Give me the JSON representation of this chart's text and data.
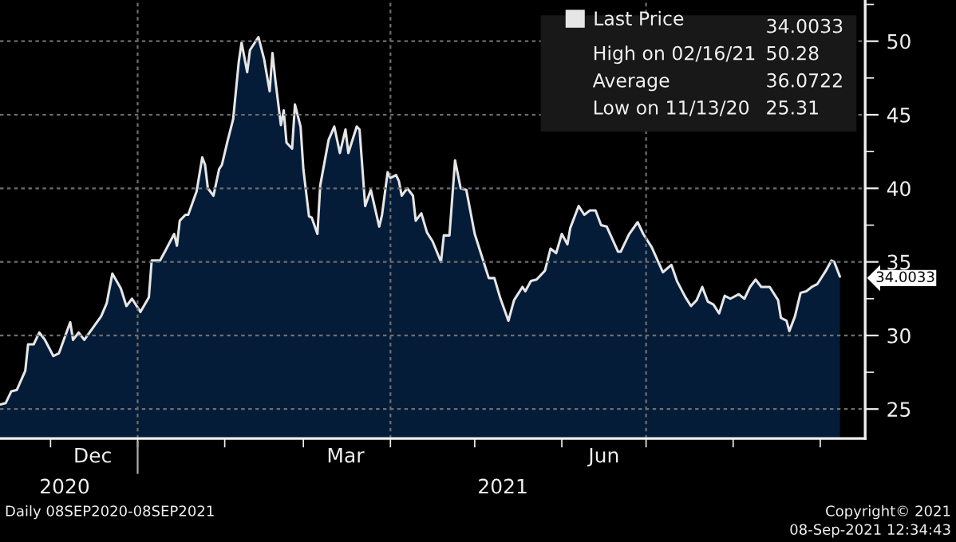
{
  "chart_data": {
    "type": "area",
    "x": [
      "2020-11-13",
      "2020-11-15",
      "2020-11-17",
      "2020-11-19",
      "2020-11-22",
      "2020-11-23",
      "2020-11-25",
      "2020-11-27",
      "2020-11-29",
      "2020-12-02",
      "2020-12-04",
      "2020-12-08",
      "2020-12-09",
      "2020-12-11",
      "2020-12-13",
      "2020-12-16",
      "2020-12-19",
      "2020-12-21",
      "2020-12-23",
      "2020-12-26",
      "2020-12-28",
      "2020-12-30",
      "2021-01-02",
      "2021-01-05",
      "2021-01-06",
      "2021-01-09",
      "2021-01-11",
      "2021-01-14",
      "2021-01-15",
      "2021-01-16",
      "2021-01-18",
      "2021-01-19",
      "2021-01-22",
      "2021-01-24",
      "2021-01-25",
      "2021-01-26",
      "2021-01-28",
      "2021-01-30",
      "2021-01-31",
      "2021-02-02",
      "2021-02-04",
      "2021-02-06",
      "2021-02-07",
      "2021-02-09",
      "2021-02-10",
      "2021-02-13",
      "2021-02-15",
      "2021-02-17",
      "2021-02-18",
      "2021-02-19",
      "2021-02-21",
      "2021-02-22",
      "2021-02-23",
      "2021-02-25",
      "2021-02-26",
      "2021-02-28",
      "2021-03-01",
      "2021-03-03",
      "2021-03-04",
      "2021-03-06",
      "2021-03-07",
      "2021-03-10",
      "2021-03-12",
      "2021-03-14",
      "2021-03-16",
      "2021-03-17",
      "2021-03-20",
      "2021-03-21",
      "2021-03-23",
      "2021-03-25",
      "2021-03-28",
      "2021-03-29",
      "2021-03-31",
      "2021-04-01",
      "2021-04-03",
      "2021-04-04",
      "2021-04-05",
      "2021-04-07",
      "2021-04-09",
      "2021-04-10",
      "2021-04-12",
      "2021-04-14",
      "2021-04-16",
      "2021-04-19",
      "2021-04-20",
      "2021-04-22",
      "2021-04-24",
      "2021-04-26",
      "2021-04-28",
      "2021-05-01",
      "2021-05-04",
      "2021-05-06",
      "2021-05-08",
      "2021-05-10",
      "2021-05-13",
      "2021-05-15",
      "2021-05-18",
      "2021-05-19",
      "2021-05-21",
      "2021-05-23",
      "2021-05-26",
      "2021-05-28",
      "2021-05-30",
      "2021-06-01",
      "2021-06-03",
      "2021-06-04",
      "2021-06-07",
      "2021-06-09",
      "2021-06-11",
      "2021-06-13",
      "2021-06-15",
      "2021-06-17",
      "2021-06-21",
      "2021-06-22",
      "2021-06-24",
      "2021-06-25",
      "2021-06-28",
      "2021-06-30",
      "2021-07-03",
      "2021-07-07",
      "2021-07-10",
      "2021-07-12",
      "2021-07-15",
      "2021-07-17",
      "2021-07-19",
      "2021-07-21",
      "2021-07-23",
      "2021-07-25",
      "2021-07-27",
      "2021-07-29",
      "2021-07-31",
      "2021-08-03",
      "2021-08-05",
      "2021-08-07",
      "2021-08-09",
      "2021-08-11",
      "2021-08-14",
      "2021-08-17",
      "2021-08-18",
      "2021-08-20",
      "2021-08-21",
      "2021-08-23",
      "2021-08-25",
      "2021-08-27",
      "2021-08-29",
      "2021-08-31",
      "2021-09-03",
      "2021-09-05",
      "2021-09-06",
      "2021-09-08"
    ],
    "series": [
      {
        "name": "Last Price",
        "color": "#e6e6e6",
        "values": [
          25.31,
          25.4,
          26.2,
          26.3,
          27.6,
          29.4,
          29.4,
          30.2,
          29.7,
          28.6,
          28.8,
          30.9,
          29.7,
          30.2,
          29.7,
          30.5,
          31.3,
          32.2,
          34.2,
          33.2,
          32.0,
          32.5,
          31.6,
          32.6,
          35.1,
          35.1,
          35.8,
          36.9,
          36.1,
          37.8,
          38.2,
          38.2,
          39.8,
          42.1,
          41.6,
          40.0,
          39.5,
          41.3,
          41.6,
          43.2,
          44.7,
          48.6,
          49.9,
          47.9,
          49.4,
          50.28,
          48.8,
          46.6,
          49.2,
          47.4,
          44.3,
          45.3,
          43.1,
          42.7,
          45.7,
          44.2,
          41.3,
          38.1,
          38.0,
          36.9,
          40.2,
          43.3,
          44.2,
          42.4,
          44.0,
          42.4,
          44.2,
          44.0,
          38.8,
          39.9,
          37.4,
          38.2,
          41.1,
          40.7,
          40.9,
          40.5,
          39.5,
          40.0,
          39.5,
          37.8,
          38.3,
          37.0,
          36.4,
          35.0,
          36.8,
          36.8,
          41.9,
          40.0,
          39.9,
          36.9,
          35.1,
          33.9,
          33.9,
          32.6,
          31.0,
          32.4,
          33.3,
          33.0,
          33.7,
          33.8,
          34.4,
          35.9,
          35.6,
          36.9,
          36.2,
          37.3,
          38.8,
          38.2,
          38.5,
          38.5,
          37.5,
          37.4,
          35.7,
          35.7,
          36.5,
          36.9,
          37.7,
          36.9,
          36.0,
          34.3,
          34.8,
          33.7,
          32.6,
          32.0,
          32.4,
          33.3,
          32.3,
          32.1,
          31.5,
          32.7,
          32.5,
          32.8,
          32.5,
          33.3,
          33.8,
          33.3,
          33.3,
          32.4,
          31.2,
          31.0,
          30.3,
          31.3,
          32.9,
          33.0,
          33.3,
          33.5,
          34.4,
          35.1,
          35.0,
          34.0033
        ]
      }
    ],
    "xlim": [
      "2020-11-13",
      "2021-09-17"
    ],
    "xticks": [
      {
        "value": "2020-12-01",
        "label": null
      },
      {
        "value": "2020-12-16",
        "label": "Dec"
      },
      {
        "value": "2021-01-01",
        "label": null
      },
      {
        "value": "2021-02-01",
        "label": null
      },
      {
        "value": "2021-03-01",
        "label": null
      },
      {
        "value": "2021-03-16",
        "label": "Mar"
      },
      {
        "value": "2021-04-01",
        "label": null
      },
      {
        "value": "2021-05-01",
        "label": null
      },
      {
        "value": "2021-06-01",
        "label": null
      },
      {
        "value": "2021-06-16",
        "label": "Jun"
      },
      {
        "value": "2021-07-01",
        "label": null
      },
      {
        "value": "2021-08-01",
        "label": null
      },
      {
        "value": "2021-09-01",
        "label": null
      }
    ],
    "x2lim": [
      "2020-11-13",
      "2021-09-17"
    ],
    "x2ticks": [
      {
        "value": "2020-12-06",
        "label": "2020"
      },
      {
        "value": "2021-01-01",
        "label": null
      },
      {
        "value": "2021-05-11",
        "label": "2021"
      }
    ],
    "ylim": [
      23,
      52.8
    ],
    "yticks": [
      25,
      {
        "value": 27.5,
        "label": null
      },
      30,
      {
        "value": 32.5,
        "label": null
      },
      35,
      {
        "value": 37.5,
        "label": null
      },
      40,
      {
        "value": 42.5,
        "label": null
      },
      45,
      {
        "value": 47.5,
        "label": null
      },
      50,
      {
        "value": 52.5,
        "label": null
      }
    ],
    "grid": "y",
    "ref_lines": [
      {
        "axis": "x",
        "value": "2021-01-01",
        "color": "#6e6e6e",
        "line_style": "dashed"
      },
      {
        "axis": "x",
        "value": "2021-04-01",
        "color": "#6e6e6e",
        "line_style": "dashed"
      },
      {
        "axis": "x",
        "value": "2021-07-01",
        "color": "#6e6e6e",
        "line_style": "dashed"
      }
    ],
    "legend": "top right",
    "annotations": [
      {
        "text": "34.0033",
        "x": "2021-09-08",
        "y": 34.0033
      },
      "34.0033",
      "High on 02/16/21",
      "50.28",
      "Average",
      "36.0722",
      "Low on 11/13/20",
      "25.31",
      "Daily 08SEP2020-08SEP2021",
      "Copyright© 2021",
      "08-Sep-2021 12:34:43"
    ]
  }
}
